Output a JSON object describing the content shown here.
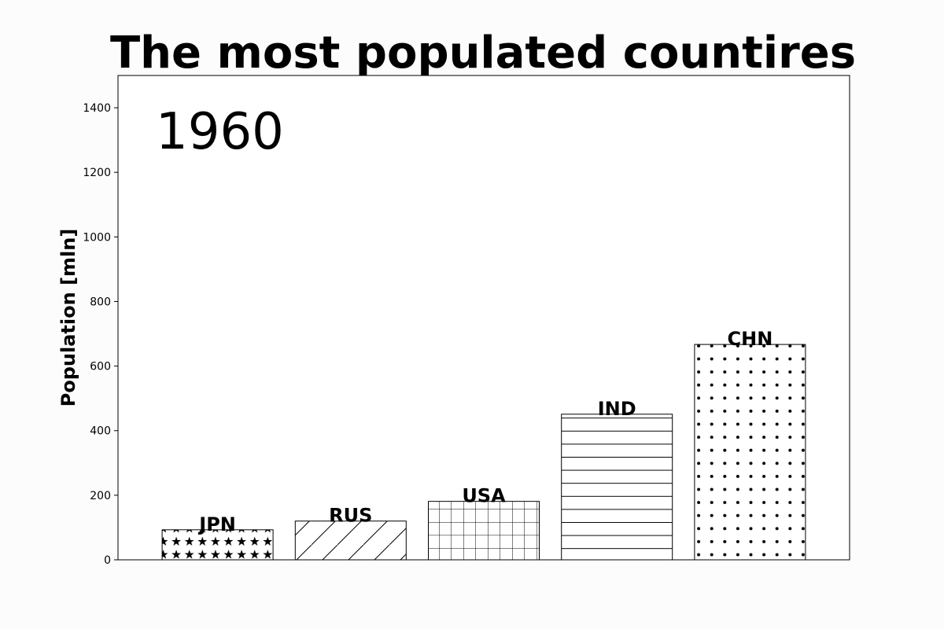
{
  "chart_data": {
    "type": "bar",
    "title": "The most populated countires",
    "ylabel": "Population [mln]",
    "xlabel": "",
    "year_annotation": "1960",
    "categories": [
      "JPN",
      "RUS",
      "USA",
      "IND",
      "CHN"
    ],
    "values": [
      93,
      120,
      181,
      451,
      667
    ],
    "patterns": [
      "stars",
      "diagonal",
      "grid",
      "horizontal",
      "dots"
    ],
    "ylim": [
      0,
      1500
    ],
    "yticks": [
      0,
      200,
      400,
      600,
      800,
      1000,
      1200,
      1400
    ],
    "grid": false,
    "legend": "none",
    "bar_fill": "#ffffff",
    "bar_edge": "#000000"
  }
}
